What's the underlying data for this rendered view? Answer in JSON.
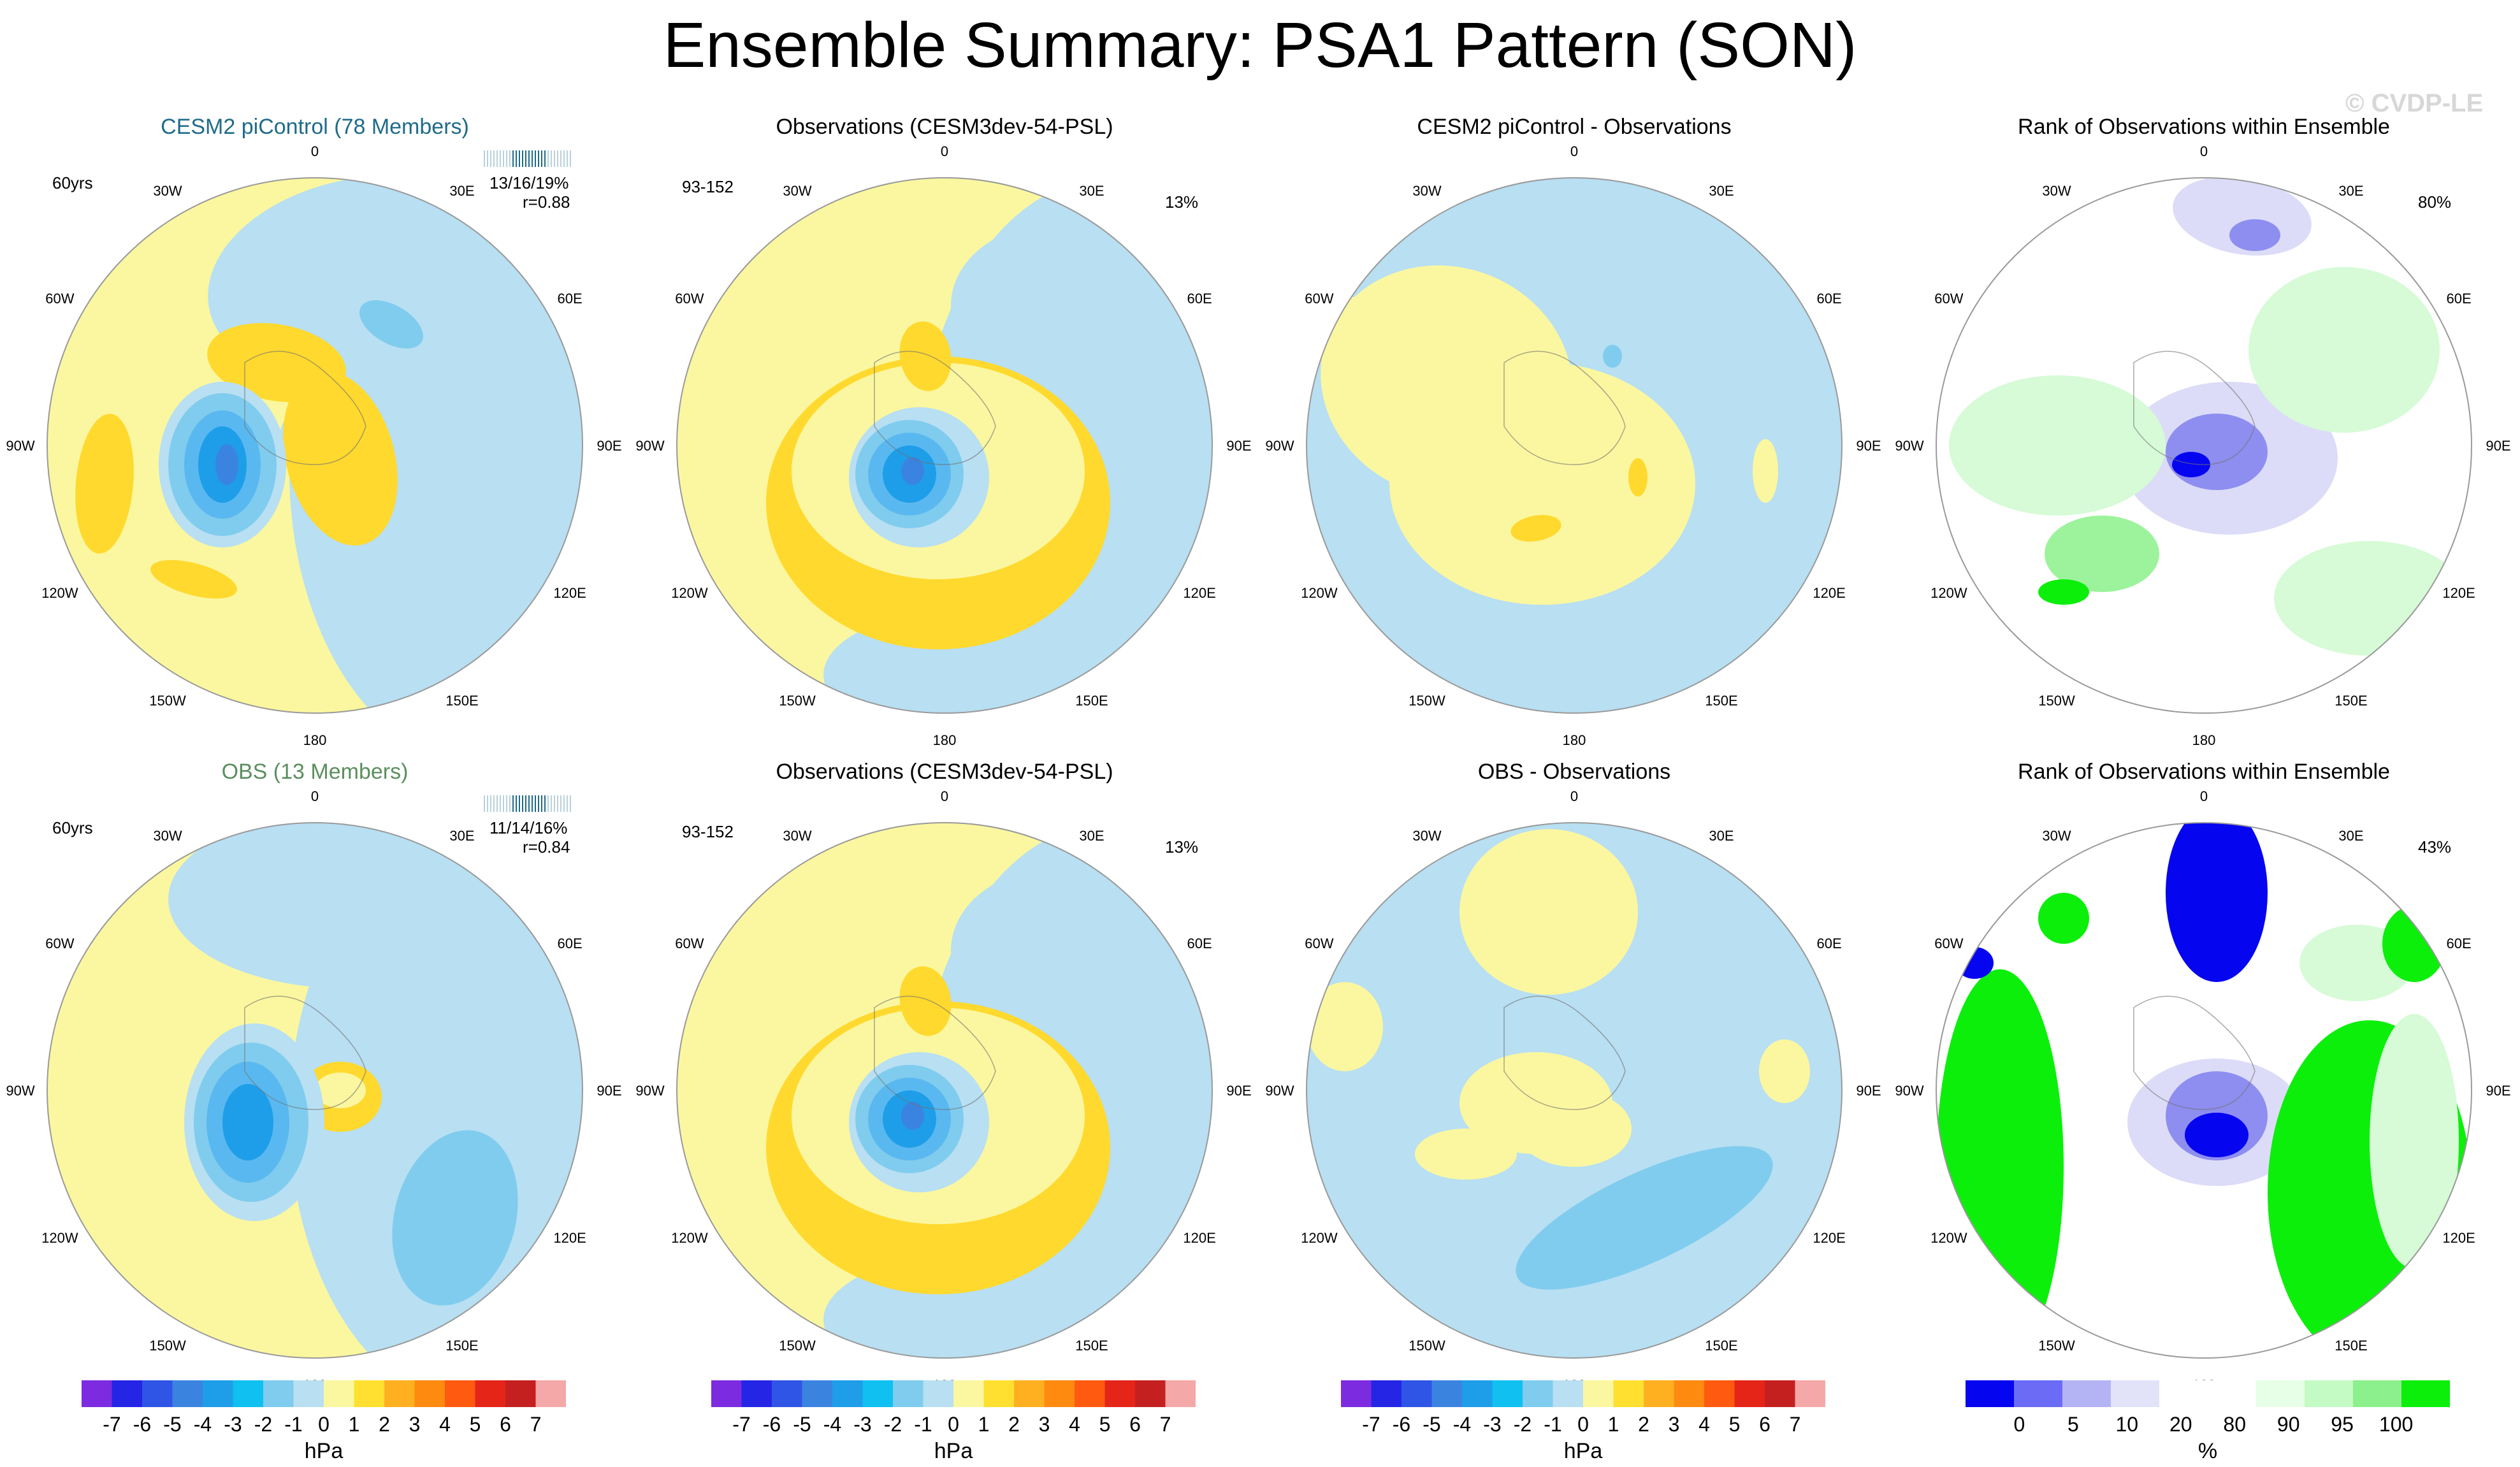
{
  "title": "Ensemble Summary: PSA1 Pattern (SON)",
  "watermark": "© CVDP-LE",
  "panels": [
    {
      "id": "p00",
      "type": "ens",
      "title": "CESM2 piControl (78 Members)",
      "title_color": "cyan",
      "left_label": "60yrs",
      "right_label": "",
      "stats": "13/16/19%",
      "r": "r=0.88"
    },
    {
      "id": "p01",
      "type": "obs",
      "title": "Observations (CESM3dev-54-PSL)",
      "title_color": "black",
      "left_label": "93-152",
      "right_label": "13%",
      "stats": "",
      "r": ""
    },
    {
      "id": "p02",
      "type": "diff",
      "title": "CESM2 piControl - Observations",
      "title_color": "black",
      "left_label": "",
      "right_label": "",
      "stats": "",
      "r": ""
    },
    {
      "id": "p03",
      "type": "rank",
      "title": "Rank of Observations within Ensemble",
      "title_color": "black",
      "left_label": "",
      "right_label": "80%",
      "stats": "",
      "r": ""
    },
    {
      "id": "p10",
      "type": "ens",
      "title": "OBS (13 Members)",
      "title_color": "green",
      "left_label": "60yrs",
      "right_label": "",
      "stats": "11/14/16%",
      "r": "r=0.84"
    },
    {
      "id": "p11",
      "type": "obs",
      "title": "Observations (CESM3dev-54-PSL)",
      "title_color": "black",
      "left_label": "93-152",
      "right_label": "13%",
      "stats": "",
      "r": ""
    },
    {
      "id": "p12",
      "type": "diff",
      "title": "OBS - Observations",
      "title_color": "black",
      "left_label": "",
      "right_label": "",
      "stats": "",
      "r": ""
    },
    {
      "id": "p13",
      "type": "rank",
      "title": "Rank of Observations within Ensemble",
      "title_color": "black",
      "left_label": "",
      "right_label": "43%",
      "stats": "",
      "r": ""
    }
  ],
  "longitude_labels": [
    "0",
    "30E",
    "60E",
    "90E",
    "120E",
    "150E",
    "180",
    "150W",
    "120W",
    "90W",
    "60W",
    "30W"
  ],
  "colorbars": {
    "psl": {
      "colors": [
        "#7c2be0",
        "#2525e6",
        "#2f55e6",
        "#3a84e0",
        "#1e9ee8",
        "#0fc0f0",
        "#80ccee",
        "#b8dff2",
        "#fbf7a0",
        "#ffe030",
        "#ffb020",
        "#ff8a10",
        "#ff5a10",
        "#e52518",
        "#c52020",
        "#f5a8a8"
      ],
      "labels": [
        "-7",
        "-6",
        "-5",
        "-4",
        "-3",
        "-2",
        "-1",
        "0",
        "1",
        "2",
        "3",
        "4",
        "5",
        "6",
        "7"
      ],
      "units": "hPa"
    },
    "rank": {
      "colors": [
        "#0505f0",
        "#6b6bf5",
        "#b4b4f5",
        "#e2e2f8",
        "#ffffff",
        "#ffffff",
        "#e6ffe6",
        "#c4fac4",
        "#8cf08c",
        "#0bef0b"
      ],
      "labels": [
        "0",
        "5",
        "10",
        "20",
        "80",
        "90",
        "95",
        "100"
      ],
      "units": "%"
    }
  },
  "palette": {
    "neg1": "#b8dff2",
    "neg2": "#80ccee",
    "neg3": "#5ab8f0",
    "neg4": "#1e9ee8",
    "neg5": "#3a84e0",
    "pos1": "#fbf7a0",
    "pos2": "#ffd92e",
    "rank_blue_dark": "#0505f0",
    "rank_blue_mid": "#8e8ef0",
    "rank_blue_light": "#dcdcf8",
    "rank_green_light": "#d6fbd6",
    "rank_green_mid": "#9cf39c",
    "rank_green_full": "#0bef0b"
  }
}
